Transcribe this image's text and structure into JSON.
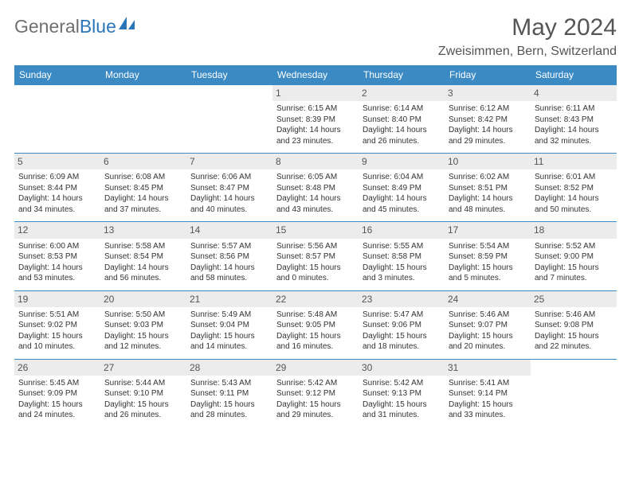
{
  "logo": {
    "part1": "General",
    "part2": "Blue"
  },
  "title": "May 2024",
  "location": "Zweisimmen, Bern, Switzerland",
  "colors": {
    "header_bg": "#3b8ac4",
    "header_text": "#ffffff",
    "border": "#3b8ac4",
    "daynum_bg": "#ececec",
    "text": "#333333",
    "title_color": "#555555",
    "logo_gray": "#6f6f6f",
    "logo_blue": "#2a76b8"
  },
  "weekdays": [
    "Sunday",
    "Monday",
    "Tuesday",
    "Wednesday",
    "Thursday",
    "Friday",
    "Saturday"
  ],
  "weeks": [
    [
      null,
      null,
      null,
      {
        "n": "1",
        "sr": "6:15 AM",
        "ss": "8:39 PM",
        "dl": "14 hours and 23 minutes."
      },
      {
        "n": "2",
        "sr": "6:14 AM",
        "ss": "8:40 PM",
        "dl": "14 hours and 26 minutes."
      },
      {
        "n": "3",
        "sr": "6:12 AM",
        "ss": "8:42 PM",
        "dl": "14 hours and 29 minutes."
      },
      {
        "n": "4",
        "sr": "6:11 AM",
        "ss": "8:43 PM",
        "dl": "14 hours and 32 minutes."
      }
    ],
    [
      {
        "n": "5",
        "sr": "6:09 AM",
        "ss": "8:44 PM",
        "dl": "14 hours and 34 minutes."
      },
      {
        "n": "6",
        "sr": "6:08 AM",
        "ss": "8:45 PM",
        "dl": "14 hours and 37 minutes."
      },
      {
        "n": "7",
        "sr": "6:06 AM",
        "ss": "8:47 PM",
        "dl": "14 hours and 40 minutes."
      },
      {
        "n": "8",
        "sr": "6:05 AM",
        "ss": "8:48 PM",
        "dl": "14 hours and 43 minutes."
      },
      {
        "n": "9",
        "sr": "6:04 AM",
        "ss": "8:49 PM",
        "dl": "14 hours and 45 minutes."
      },
      {
        "n": "10",
        "sr": "6:02 AM",
        "ss": "8:51 PM",
        "dl": "14 hours and 48 minutes."
      },
      {
        "n": "11",
        "sr": "6:01 AM",
        "ss": "8:52 PM",
        "dl": "14 hours and 50 minutes."
      }
    ],
    [
      {
        "n": "12",
        "sr": "6:00 AM",
        "ss": "8:53 PM",
        "dl": "14 hours and 53 minutes."
      },
      {
        "n": "13",
        "sr": "5:58 AM",
        "ss": "8:54 PM",
        "dl": "14 hours and 56 minutes."
      },
      {
        "n": "14",
        "sr": "5:57 AM",
        "ss": "8:56 PM",
        "dl": "14 hours and 58 minutes."
      },
      {
        "n": "15",
        "sr": "5:56 AM",
        "ss": "8:57 PM",
        "dl": "15 hours and 0 minutes."
      },
      {
        "n": "16",
        "sr": "5:55 AM",
        "ss": "8:58 PM",
        "dl": "15 hours and 3 minutes."
      },
      {
        "n": "17",
        "sr": "5:54 AM",
        "ss": "8:59 PM",
        "dl": "15 hours and 5 minutes."
      },
      {
        "n": "18",
        "sr": "5:52 AM",
        "ss": "9:00 PM",
        "dl": "15 hours and 7 minutes."
      }
    ],
    [
      {
        "n": "19",
        "sr": "5:51 AM",
        "ss": "9:02 PM",
        "dl": "15 hours and 10 minutes."
      },
      {
        "n": "20",
        "sr": "5:50 AM",
        "ss": "9:03 PM",
        "dl": "15 hours and 12 minutes."
      },
      {
        "n": "21",
        "sr": "5:49 AM",
        "ss": "9:04 PM",
        "dl": "15 hours and 14 minutes."
      },
      {
        "n": "22",
        "sr": "5:48 AM",
        "ss": "9:05 PM",
        "dl": "15 hours and 16 minutes."
      },
      {
        "n": "23",
        "sr": "5:47 AM",
        "ss": "9:06 PM",
        "dl": "15 hours and 18 minutes."
      },
      {
        "n": "24",
        "sr": "5:46 AM",
        "ss": "9:07 PM",
        "dl": "15 hours and 20 minutes."
      },
      {
        "n": "25",
        "sr": "5:46 AM",
        "ss": "9:08 PM",
        "dl": "15 hours and 22 minutes."
      }
    ],
    [
      {
        "n": "26",
        "sr": "5:45 AM",
        "ss": "9:09 PM",
        "dl": "15 hours and 24 minutes."
      },
      {
        "n": "27",
        "sr": "5:44 AM",
        "ss": "9:10 PM",
        "dl": "15 hours and 26 minutes."
      },
      {
        "n": "28",
        "sr": "5:43 AM",
        "ss": "9:11 PM",
        "dl": "15 hours and 28 minutes."
      },
      {
        "n": "29",
        "sr": "5:42 AM",
        "ss": "9:12 PM",
        "dl": "15 hours and 29 minutes."
      },
      {
        "n": "30",
        "sr": "5:42 AM",
        "ss": "9:13 PM",
        "dl": "15 hours and 31 minutes."
      },
      {
        "n": "31",
        "sr": "5:41 AM",
        "ss": "9:14 PM",
        "dl": "15 hours and 33 minutes."
      },
      null
    ]
  ],
  "labels": {
    "sunrise": "Sunrise:",
    "sunset": "Sunset:",
    "daylight": "Daylight:"
  }
}
